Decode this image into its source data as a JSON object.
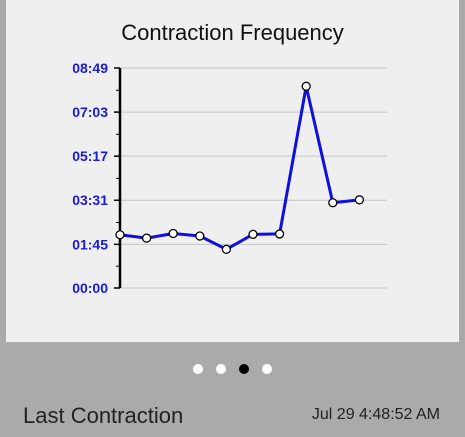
{
  "chart_data": {
    "type": "line",
    "title": "Contraction Frequency",
    "xlabel": "",
    "ylabel": "",
    "y_tick_labels": [
      "00:00",
      "01:45",
      "03:31",
      "05:17",
      "07:03",
      "08:49"
    ],
    "y_tick_seconds": [
      0,
      105,
      211,
      317,
      423,
      529
    ],
    "ylim": [
      0,
      529
    ],
    "grid": true,
    "line_color": "#1010dd",
    "tick_label_color": "#1a1ad6",
    "series": [
      {
        "x": [
          1,
          2,
          3,
          4,
          5,
          6,
          7,
          8,
          9,
          10
        ],
        "values": [
          128,
          120,
          131,
          125,
          93,
          129,
          130,
          485,
          205,
          212
        ]
      }
    ]
  },
  "pager": {
    "count": 4,
    "active_index": 2
  },
  "footer": {
    "label": "Last Contraction",
    "value": "Jul 29 4:48:52 AM"
  }
}
